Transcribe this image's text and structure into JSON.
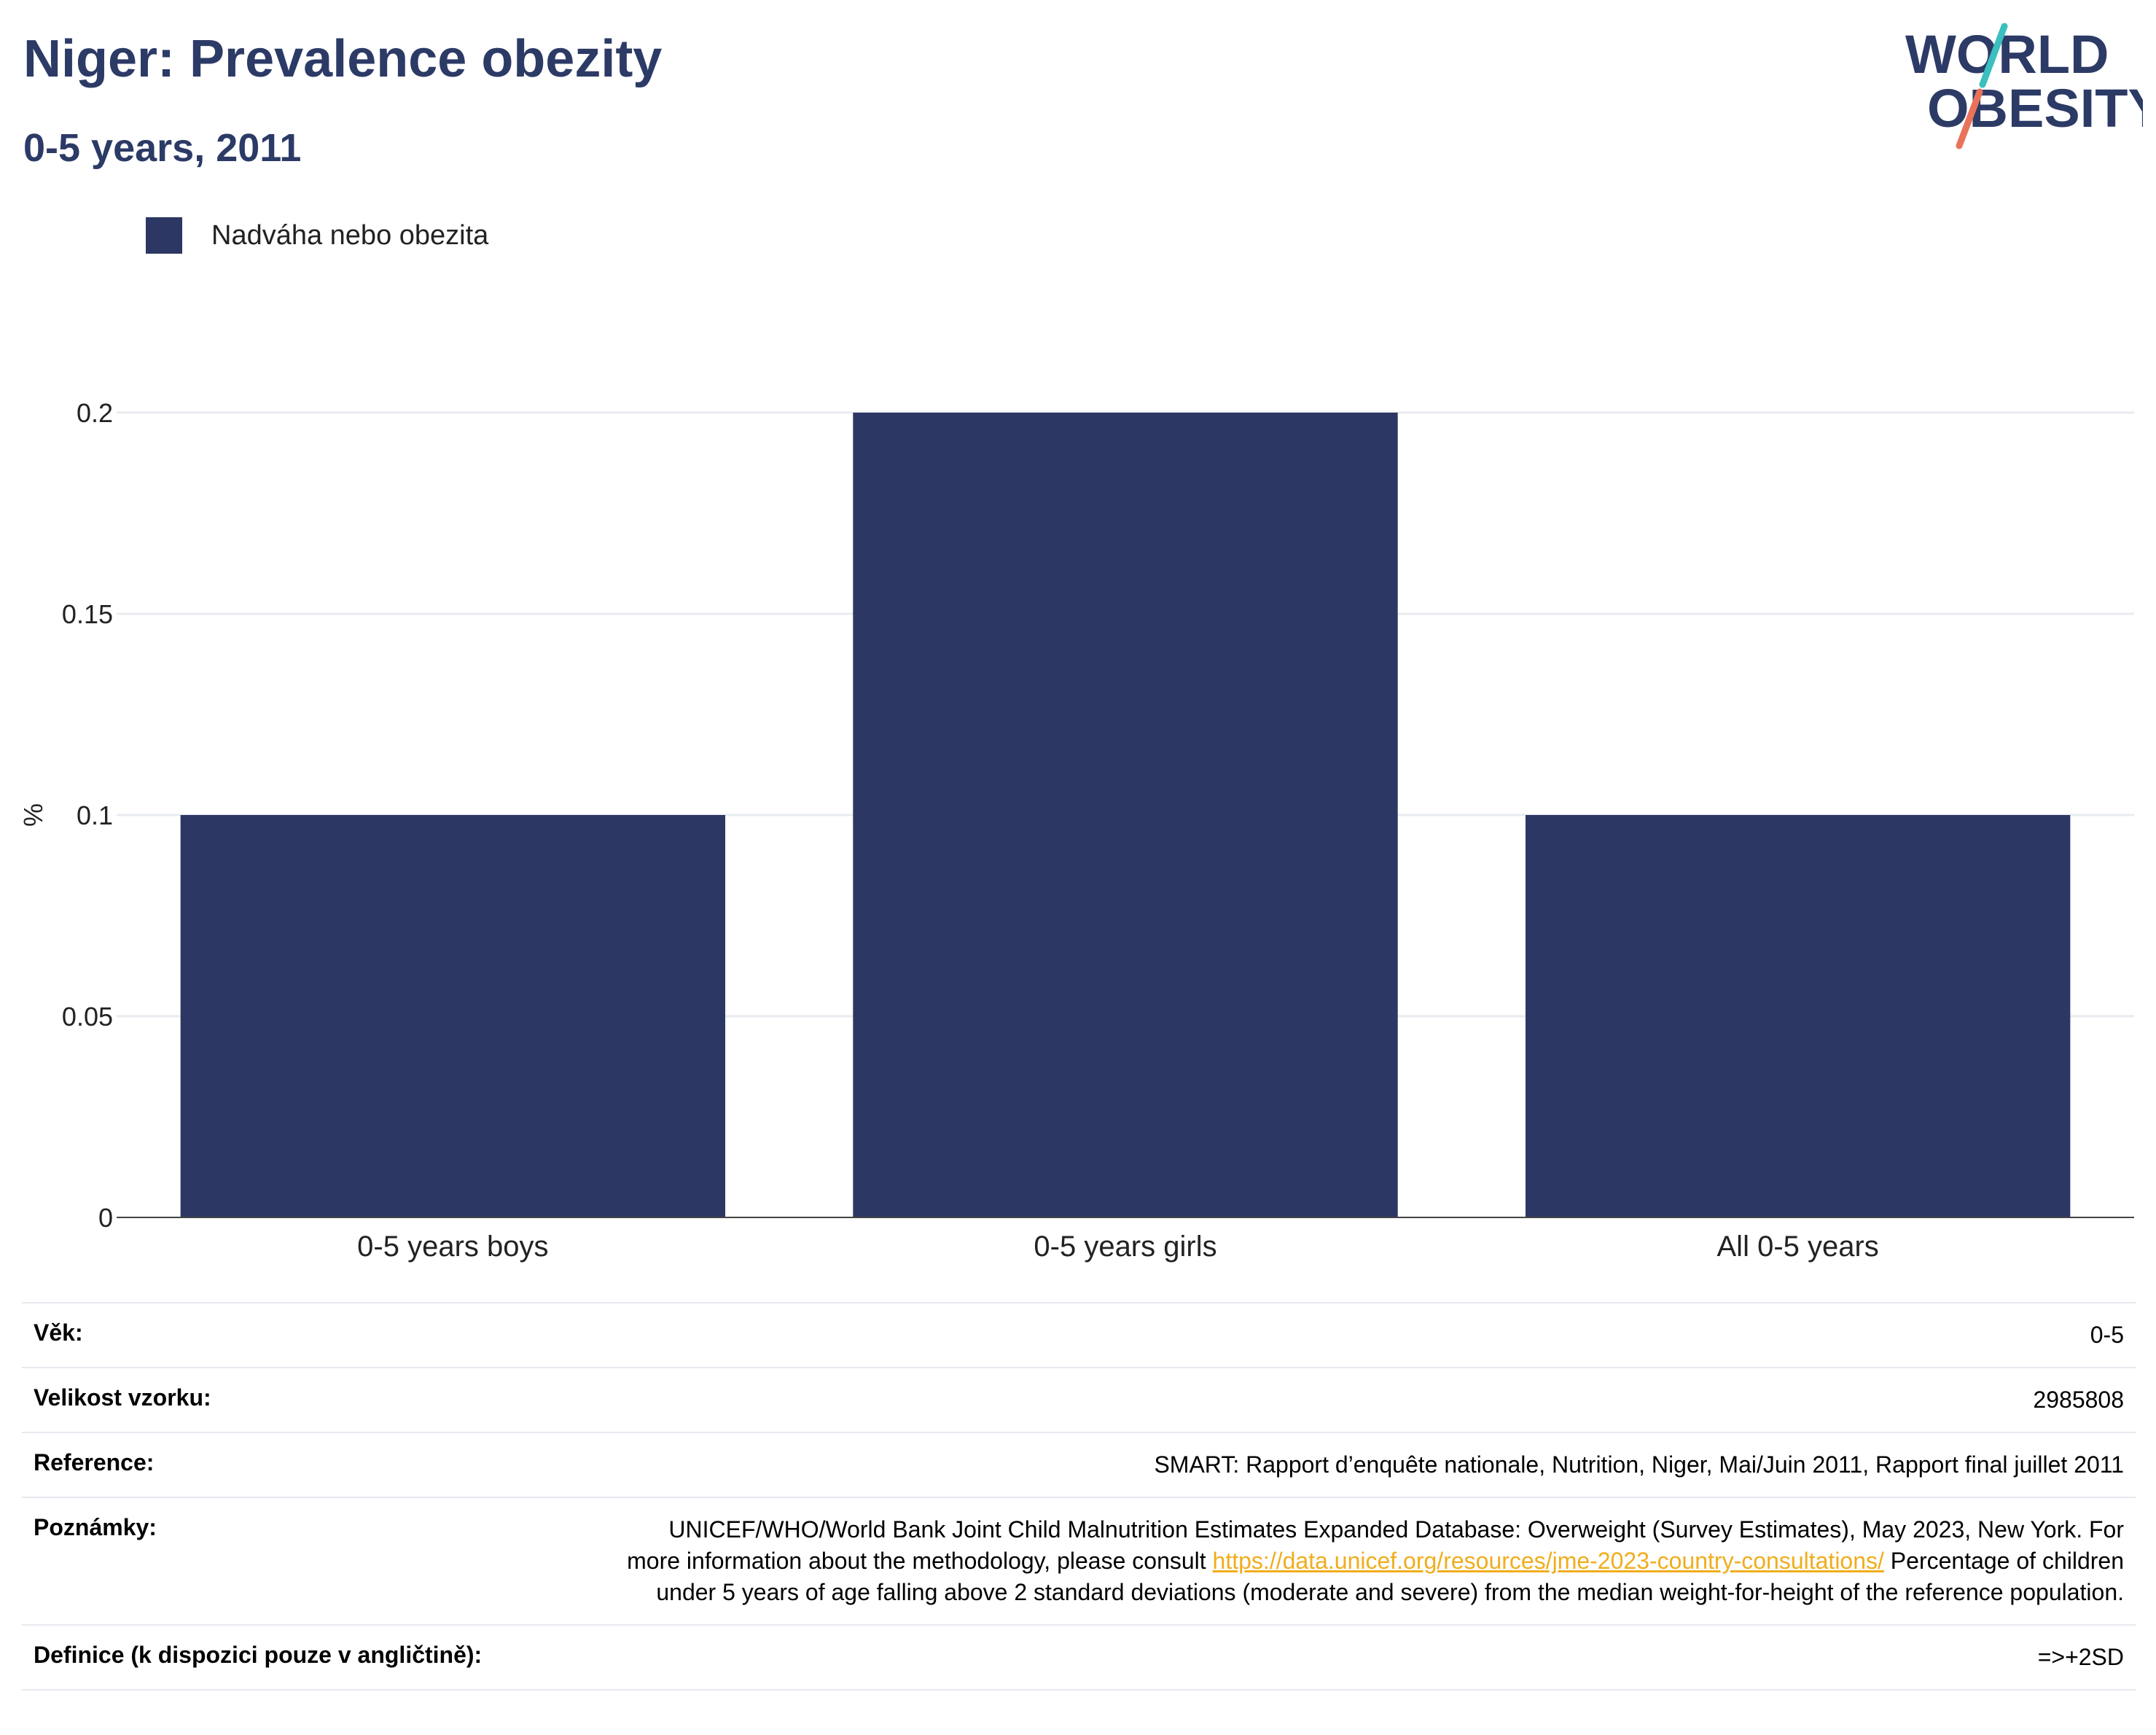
{
  "header": {
    "title": "Niger: Prevalence obezity",
    "subtitle": "0-5 years, 2011"
  },
  "logo": {
    "line1": "WORLD",
    "line2": "OBESITY",
    "colors": {
      "text": "#2c3a66",
      "slash_top": "#3bbfbf",
      "slash_bottom": "#e8735a"
    }
  },
  "legend": {
    "label": "Nadváha nebo obezita",
    "color": "#2c3763"
  },
  "chart_data": {
    "type": "bar",
    "categories": [
      "0-5 years boys",
      "0-5 years girls",
      "All 0-5 years"
    ],
    "series": [
      {
        "name": "Nadváha nebo obezita",
        "values": [
          0.1,
          0.2,
          0.1
        ],
        "color": "#2c3763"
      }
    ],
    "ylabel": "%",
    "xlabel": "",
    "ylim": [
      0,
      0.2
    ],
    "yticks": [
      0,
      0.05,
      0.1,
      0.15,
      0.2
    ],
    "ytick_labels": [
      "0",
      "0.05",
      "0.1",
      "0.15",
      "0.2"
    ],
    "grid": true,
    "legend_position": "top-left"
  },
  "info": {
    "age": {
      "label": "Věk:",
      "value": "0-5"
    },
    "sample": {
      "label": "Velikost vzorku:",
      "value": "2985808"
    },
    "reference": {
      "label": "Reference:",
      "value": "SMART: Rapport d’enquête nationale, Nutrition, Niger, Mai/Juin 2011, Rapport final juillet 2011"
    },
    "notes": {
      "label": "Poznámky:",
      "text_before": "UNICEF/WHO/World Bank Joint Child Malnutrition Estimates Expanded Database: Overweight (Survey Estimates), May 2023, New York. For more information about the methodology, please consult ",
      "link": "https://data.unicef.org/resources/jme-2023-country-consultations/",
      "text_after": " Percentage of children under 5 years of age falling above 2 standard deviations (moderate and severe) from the median weight-for-height of the reference population."
    },
    "definition": {
      "label": "Definice (k dispozici pouze v angličtině):",
      "value": "=>+2SD"
    }
  }
}
